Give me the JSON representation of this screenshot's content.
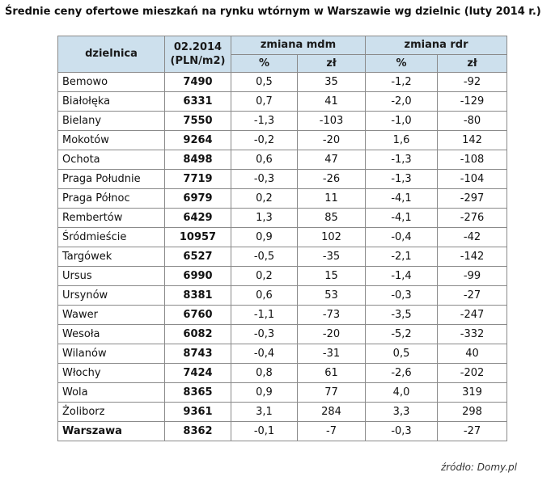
{
  "title": "Średnie ceny ofertowe mieszkań na rynku wtórnym w Warszawie wg dzielnic (luty 2014 r.)",
  "header": {
    "district": "dzielnica",
    "date_line1": "02.2014",
    "date_line2": "(PLN/m2)",
    "mdm": "zmiana mdm",
    "rdr": "zmiana rdr",
    "pct": "%",
    "pln": "zł"
  },
  "rows": [
    {
      "name": "Bemowo",
      "price": "7490",
      "mdm_pct": "0,5",
      "mdm_zl": "35",
      "rdr_pct": "-1,2",
      "rdr_zl": "-92"
    },
    {
      "name": "Białołęka",
      "price": "6331",
      "mdm_pct": "0,7",
      "mdm_zl": "41",
      "rdr_pct": "-2,0",
      "rdr_zl": "-129"
    },
    {
      "name": "Bielany",
      "price": "7550",
      "mdm_pct": "-1,3",
      "mdm_zl": "-103",
      "rdr_pct": "-1,0",
      "rdr_zl": "-80"
    },
    {
      "name": "Mokotów",
      "price": "9264",
      "mdm_pct": "-0,2",
      "mdm_zl": "-20",
      "rdr_pct": "1,6",
      "rdr_zl": "142"
    },
    {
      "name": "Ochota",
      "price": "8498",
      "mdm_pct": "0,6",
      "mdm_zl": "47",
      "rdr_pct": "-1,3",
      "rdr_zl": "-108"
    },
    {
      "name": "Praga Południe",
      "price": "7719",
      "mdm_pct": "-0,3",
      "mdm_zl": "-26",
      "rdr_pct": "-1,3",
      "rdr_zl": "-104"
    },
    {
      "name": "Praga Północ",
      "price": "6979",
      "mdm_pct": "0,2",
      "mdm_zl": "11",
      "rdr_pct": "-4,1",
      "rdr_zl": "-297"
    },
    {
      "name": "Rembertów",
      "price": "6429",
      "mdm_pct": "1,3",
      "mdm_zl": "85",
      "rdr_pct": "-4,1",
      "rdr_zl": "-276"
    },
    {
      "name": "Śródmieście",
      "price": "10957",
      "mdm_pct": "0,9",
      "mdm_zl": "102",
      "rdr_pct": "-0,4",
      "rdr_zl": "-42"
    },
    {
      "name": "Targówek",
      "price": "6527",
      "mdm_pct": "-0,5",
      "mdm_zl": "-35",
      "rdr_pct": "-2,1",
      "rdr_zl": "-142"
    },
    {
      "name": "Ursus",
      "price": "6990",
      "mdm_pct": "0,2",
      "mdm_zl": "15",
      "rdr_pct": "-1,4",
      "rdr_zl": "-99"
    },
    {
      "name": "Ursynów",
      "price": "8381",
      "mdm_pct": "0,6",
      "mdm_zl": "53",
      "rdr_pct": "-0,3",
      "rdr_zl": "-27"
    },
    {
      "name": "Wawer",
      "price": "6760",
      "mdm_pct": "-1,1",
      "mdm_zl": "-73",
      "rdr_pct": "-3,5",
      "rdr_zl": "-247"
    },
    {
      "name": "Wesoła",
      "price": "6082",
      "mdm_pct": "-0,3",
      "mdm_zl": "-20",
      "rdr_pct": "-5,2",
      "rdr_zl": "-332"
    },
    {
      "name": "Wilanów",
      "price": "8743",
      "mdm_pct": "-0,4",
      "mdm_zl": "-31",
      "rdr_pct": "0,5",
      "rdr_zl": "40"
    },
    {
      "name": "Włochy",
      "price": "7424",
      "mdm_pct": "0,8",
      "mdm_zl": "61",
      "rdr_pct": "-2,6",
      "rdr_zl": "-202"
    },
    {
      "name": "Wola",
      "price": "8365",
      "mdm_pct": "0,9",
      "mdm_zl": "77",
      "rdr_pct": "4,0",
      "rdr_zl": "319"
    },
    {
      "name": "Żoliborz",
      "price": "9361",
      "mdm_pct": "3,1",
      "mdm_zl": "284",
      "rdr_pct": "3,3",
      "rdr_zl": "298"
    }
  ],
  "total": {
    "name": "Warszawa",
    "price": "8362",
    "mdm_pct": "-0,1",
    "mdm_zl": "-7",
    "rdr_pct": "-0,3",
    "rdr_zl": "-27"
  },
  "source": "źródło: Domy.pl",
  "colors": {
    "header_bg": "#cde0ed",
    "border": "#8a8a8a"
  }
}
